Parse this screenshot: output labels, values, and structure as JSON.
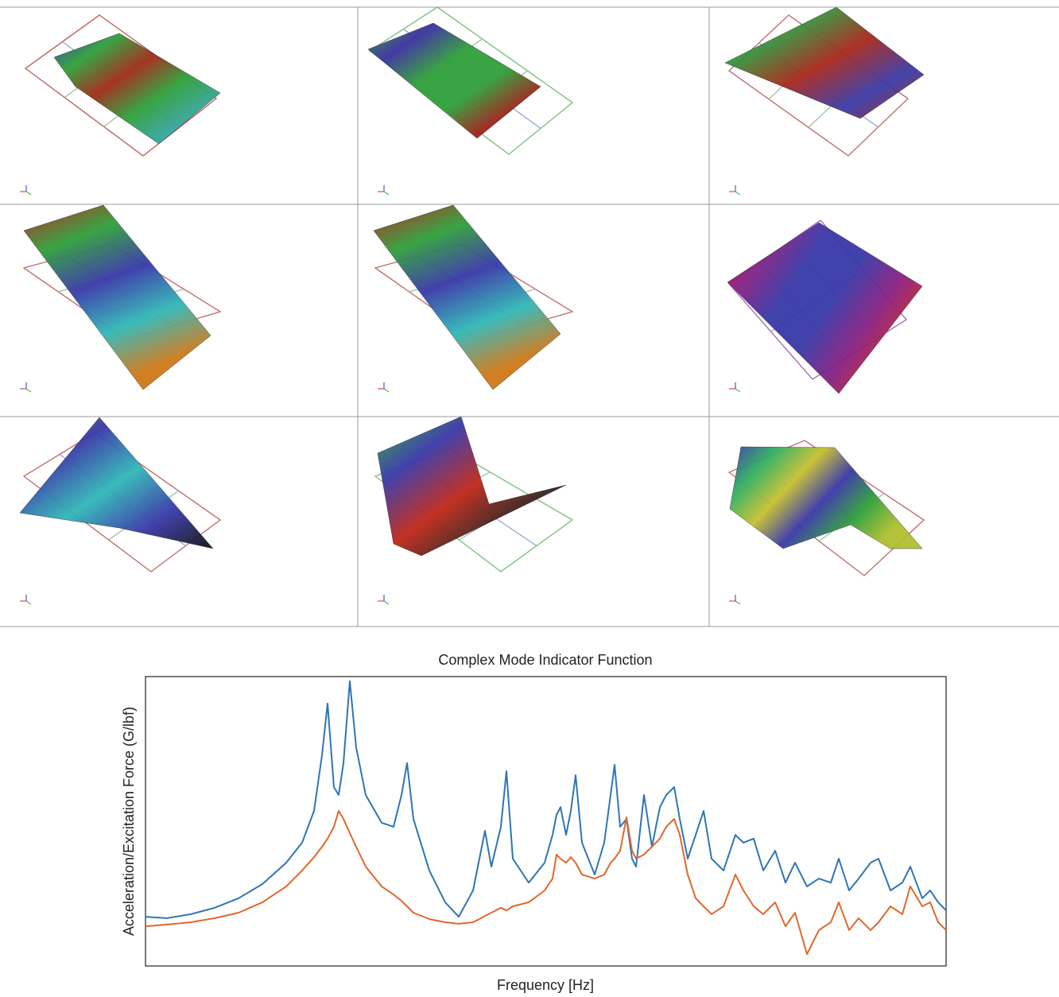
{
  "chart_data": {
    "type": "line",
    "title": "Complex Mode Indicator Function",
    "x_label": "Frequency [Hz]",
    "y_label": "Acceleration/Excitation Force (G/lbf)",
    "x": [
      0,
      27,
      57,
      87,
      117,
      147,
      177,
      197,
      212,
      222,
      229,
      237,
      243,
      249,
      257,
      265,
      277,
      297,
      312,
      322,
      329,
      337,
      357,
      377,
      394,
      412,
      422,
      427,
      435,
      447,
      454,
      462,
      482,
      502,
      512,
      517,
      522,
      529,
      535,
      541,
      549,
      565,
      577,
      585,
      590,
      597,
      605,
      612,
      617,
      627,
      637,
      647,
      655,
      665,
      672,
      682,
      692,
      702,
      712,
      727,
      742,
      752,
      765,
      777,
      792,
      805,
      817,
      832,
      847,
      862,
      872,
      885,
      897,
      912,
      922,
      937,
      952,
      962,
      977,
      987,
      997,
      1007
    ],
    "xlim": [
      0,
      1007
    ],
    "ylim": [
      0,
      100
    ],
    "series": [
      {
        "color": "#2e75b6",
        "values": [
          17.0,
          16.5,
          17.9,
          20.1,
          23.4,
          28.3,
          35.7,
          42.6,
          53.6,
          72.8,
          90.7,
          61.8,
          59.1,
          70.1,
          98.4,
          75.5,
          59.1,
          49.5,
          48.1,
          59.1,
          70.1,
          50.8,
          33.0,
          22.0,
          17.0,
          26.1,
          39.8,
          46.7,
          34.3,
          48.1,
          67.3,
          37.1,
          28.8,
          35.7,
          45.3,
          52.2,
          54.9,
          45.3,
          53.6,
          65.9,
          42.6,
          31.6,
          42.6,
          59.1,
          69.5,
          48.1,
          50.8,
          37.1,
          34.3,
          59.1,
          41.2,
          54.9,
          59.1,
          61.8,
          50.8,
          37.1,
          45.3,
          53.6,
          37.1,
          33.0,
          45.3,
          42.6,
          44.0,
          33.0,
          39.8,
          28.8,
          35.7,
          27.5,
          30.2,
          28.8,
          37.1,
          26.1,
          30.2,
          35.7,
          37.1,
          26.1,
          28.8,
          34.3,
          23.4,
          26.1,
          22.0,
          19.2
        ]
      },
      {
        "color": "#e2672a",
        "values": [
          13.7,
          14.3,
          15.1,
          16.5,
          18.4,
          22.0,
          27.5,
          33.0,
          37.6,
          41.2,
          44.0,
          48.1,
          53.6,
          50.8,
          45.9,
          41.2,
          34.3,
          27.5,
          24.7,
          22.5,
          20.6,
          18.4,
          16.2,
          15.1,
          14.6,
          15.1,
          16.5,
          17.3,
          18.4,
          20.1,
          19.2,
          20.6,
          22.0,
          26.1,
          30.2,
          38.5,
          37.1,
          35.7,
          37.6,
          35.7,
          31.6,
          30.2,
          31.6,
          35.7,
          37.1,
          39.8,
          51.4,
          39.8,
          37.1,
          38.5,
          41.2,
          44.0,
          48.1,
          50.8,
          45.3,
          31.6,
          23.4,
          20.6,
          17.9,
          20.6,
          31.6,
          26.1,
          20.6,
          17.9,
          22.0,
          13.7,
          18.4,
          4.1,
          12.4,
          15.1,
          22.0,
          12.4,
          16.5,
          12.4,
          15.1,
          20.6,
          17.9,
          27.5,
          20.6,
          22.0,
          15.1,
          12.4
        ]
      }
    ]
  }
}
